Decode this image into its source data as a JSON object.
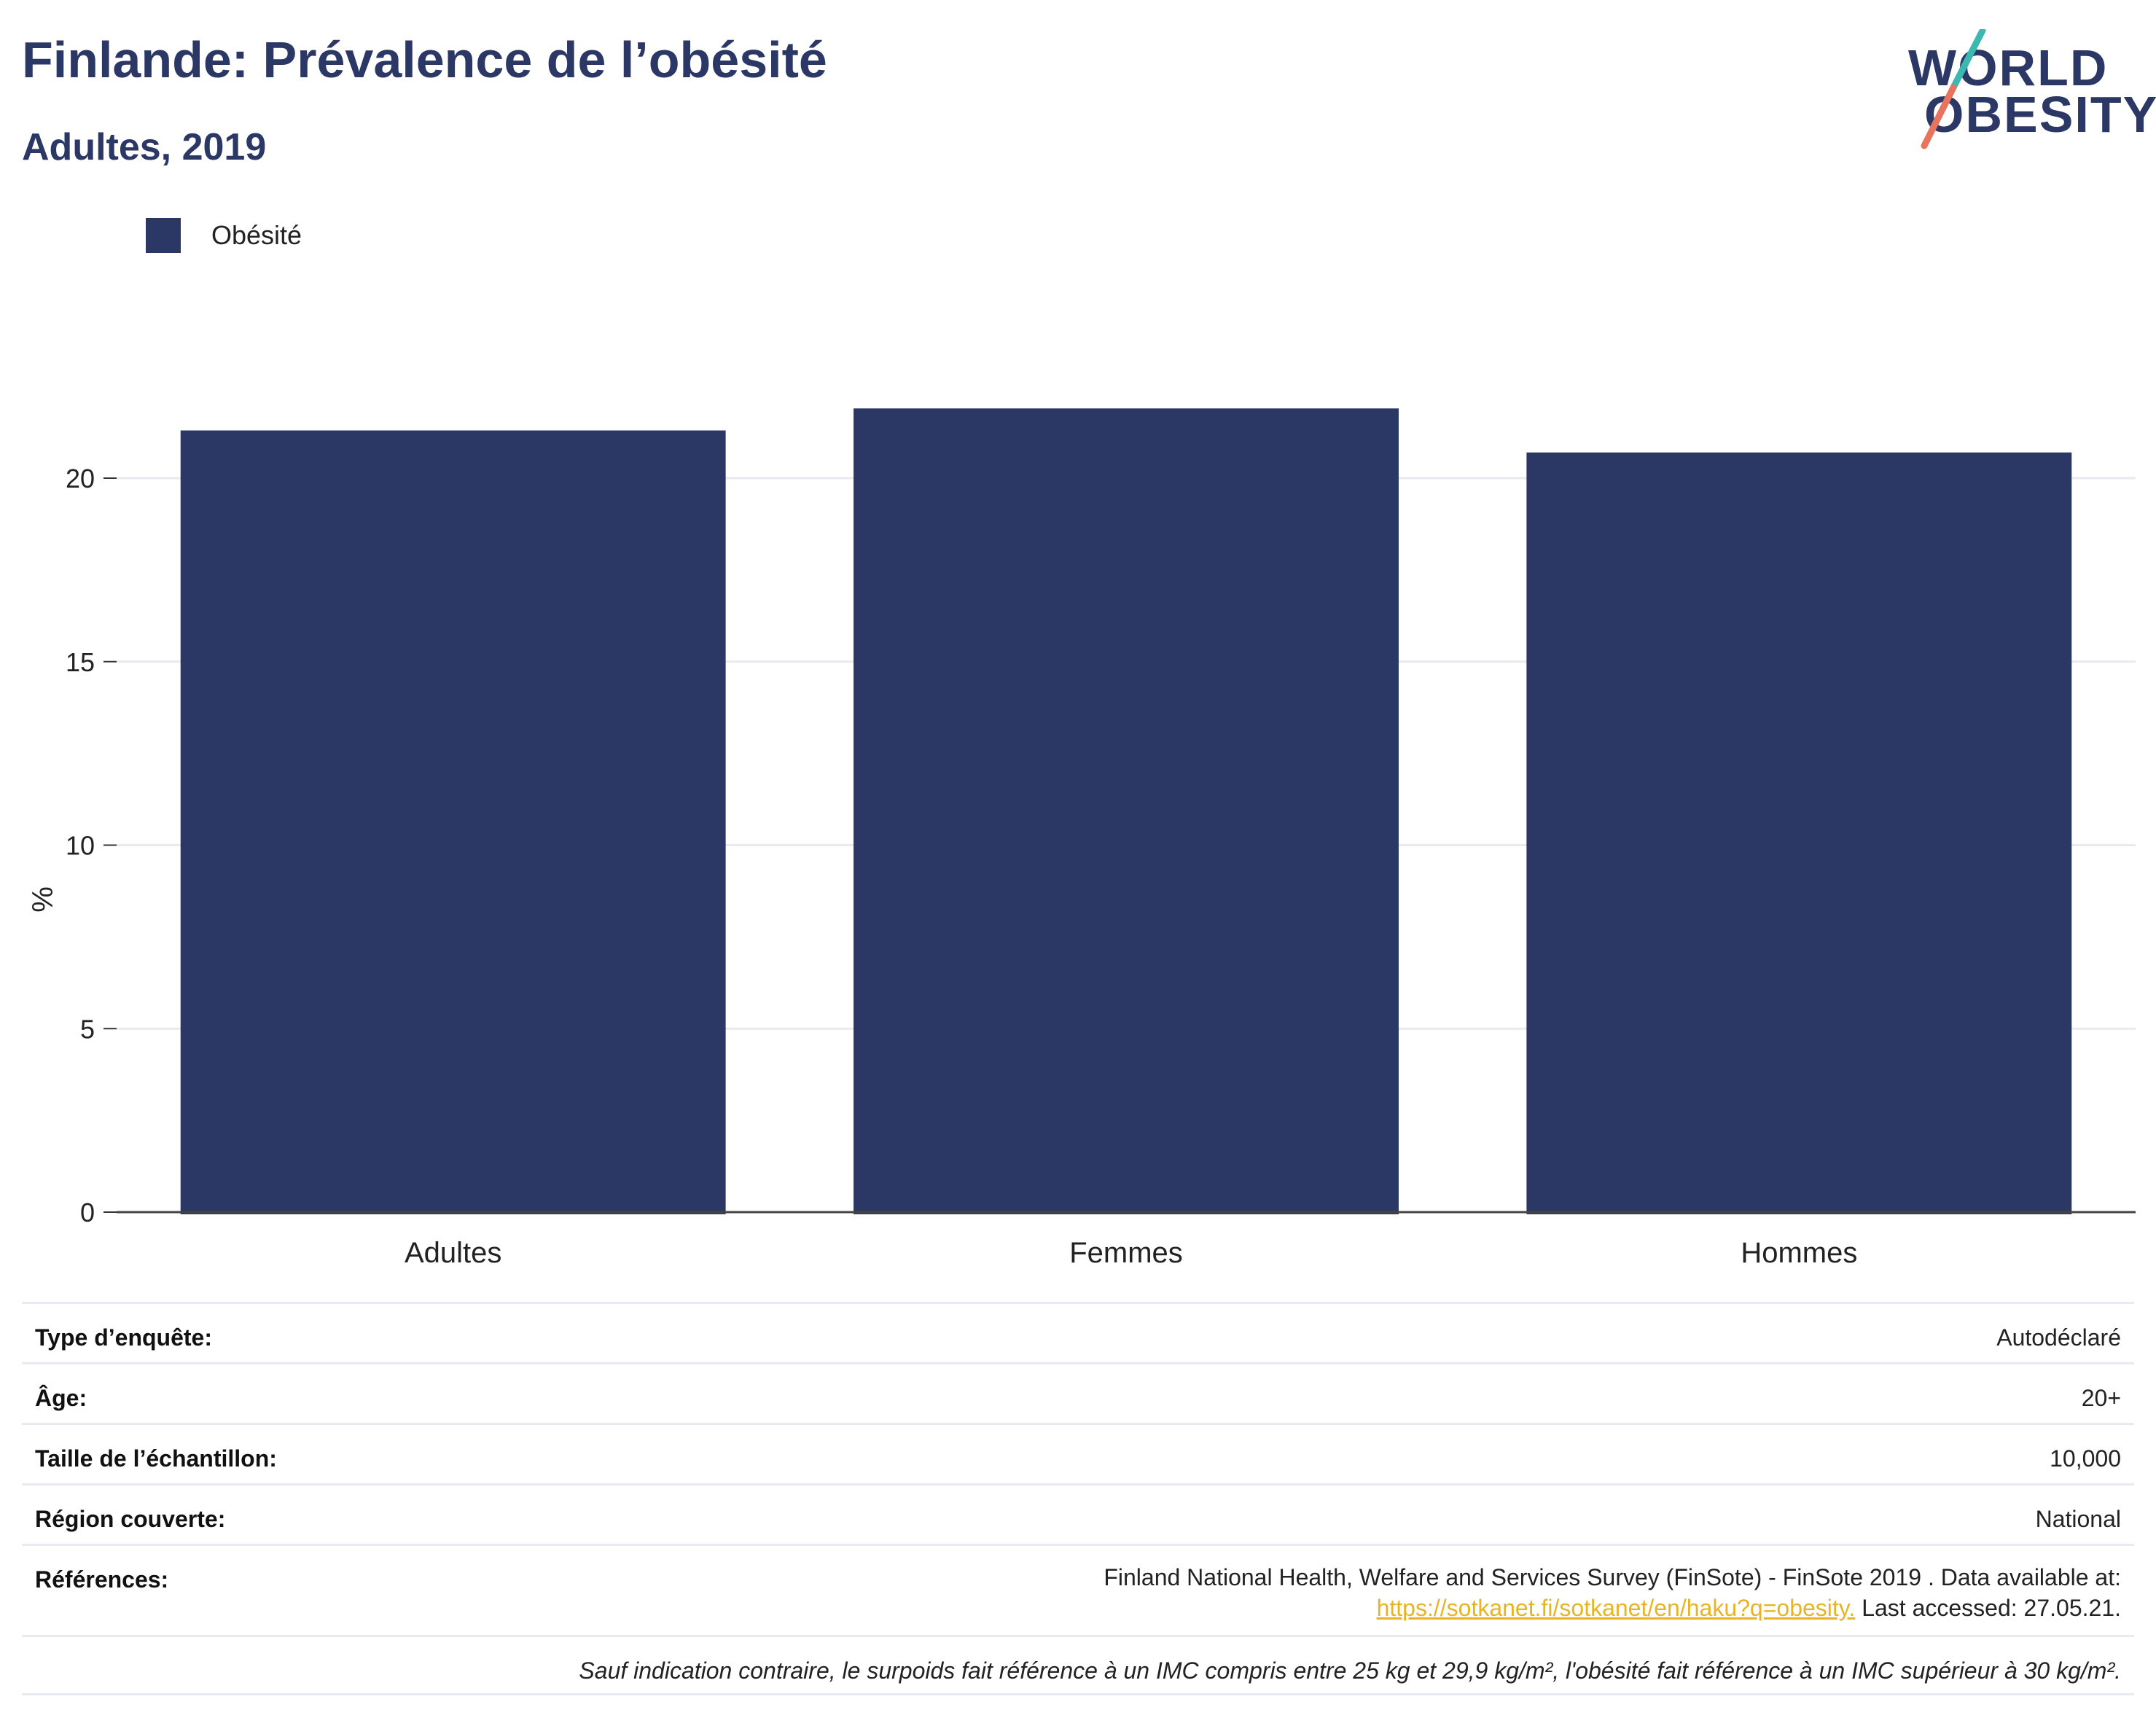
{
  "header": {
    "title": "Finlande: Prévalence de l’obésité",
    "subtitle": "Adultes, 2019"
  },
  "logo": {
    "line1": "WORLD",
    "line2": "OBESITY",
    "colors": {
      "text": "#2b3764",
      "slash_top": "#3bb8b0",
      "slash_bottom": "#e8745f"
    }
  },
  "legend": {
    "label": "Obésité",
    "color": "#2b3764"
  },
  "chart_data": {
    "type": "bar",
    "title": "",
    "xlabel": "",
    "ylabel": "%",
    "categories": [
      "Adultes",
      "Femmes",
      "Hommes"
    ],
    "series": [
      {
        "name": "Obésité",
        "values": [
          21.3,
          21.9,
          20.7
        ],
        "color": "#2b3764"
      }
    ],
    "ylim": [
      0,
      23
    ],
    "yticks": [
      0,
      5,
      10,
      15,
      20
    ],
    "grid": true,
    "legend_position": "top-left"
  },
  "info": {
    "survey_type": {
      "label": "Type d’enquête:",
      "value": "Autodéclaré"
    },
    "age": {
      "label": "Âge:",
      "value": "20+"
    },
    "sample_size": {
      "label": "Taille de l’échantillon:",
      "value": "10,000"
    },
    "region": {
      "label": "Région couverte:",
      "value": "National"
    },
    "references": {
      "label": "Références:",
      "line1": "Finland National Health, Welfare and Services Survey (FinSote) - FinSote 2019 . Data available at:",
      "link": "https://sotkanet.fi/sotkanet/en/haku?q=obesity.",
      "after_link": " Last accessed: 27.05.21."
    },
    "note": "Sauf indication contraire, le surpoids fait référence à un IMC compris entre 25 kg et 29,9 kg/m², l'obésité fait référence à un IMC supérieur à 30 kg/m²."
  }
}
